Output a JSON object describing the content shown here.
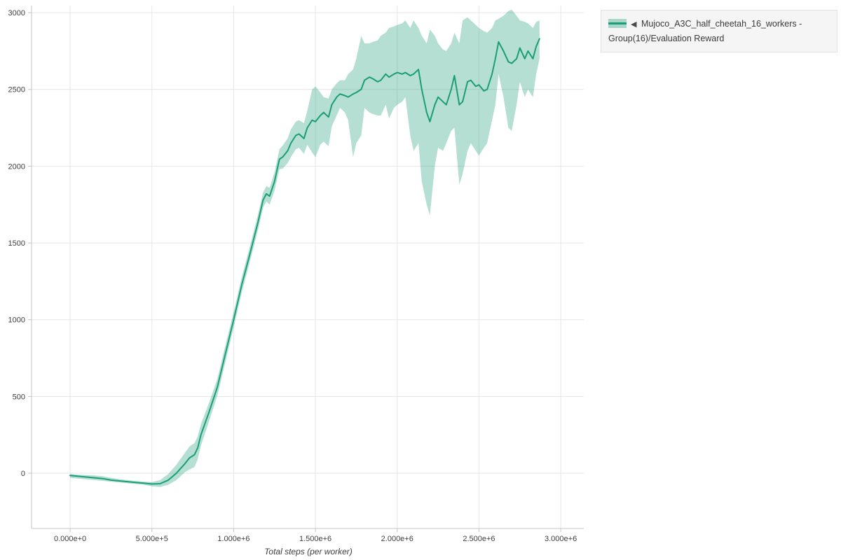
{
  "colors": {
    "line": "#1b9e77",
    "band": "#1b9e77",
    "band_opacity": 0.33,
    "grid": "#e6e6e6",
    "axis": "#c4c4c4",
    "tick_text": "#3d3d3d"
  },
  "legend": {
    "collapse_icon": "◀",
    "label": "Mujoco_A3C_half_cheetah_16_workers - Group(16)/Evaluation Reward"
  },
  "axes": {
    "xlabel": "Total steps (per worker)",
    "x_tick_values": [
      0,
      500000,
      1000000,
      1500000,
      2000000,
      2500000,
      3000000
    ],
    "x_tick_labels": [
      "0.000e+0",
      "5.000e+5",
      "1.000e+6",
      "1.500e+6",
      "2.000e+6",
      "2.500e+6",
      "3.000e+6"
    ],
    "y_tick_values": [
      0,
      500,
      1000,
      1500,
      2000,
      2500,
      3000
    ],
    "y_tick_labels": [
      "0",
      "500",
      "1000",
      "1500",
      "2000",
      "2500",
      "3000"
    ]
  },
  "chart_data": {
    "type": "line",
    "title": "",
    "xlabel": "Total steps (per worker)",
    "ylabel": "",
    "x_range": [
      -236000,
      3141000
    ],
    "y_range": [
      -360,
      3046
    ],
    "grid": true,
    "legend_position": "top-right",
    "series_name": "Mujoco_A3C_half_cheetah_16_workers - Group(16)/Evaluation Reward",
    "x": [
      0,
      50000,
      100000,
      150000,
      200000,
      250000,
      300000,
      350000,
      400000,
      450000,
      500000,
      550000,
      600000,
      650000,
      700000,
      730000,
      760000,
      780000,
      800000,
      850000,
      900000,
      950000,
      1000000,
      1050000,
      1100000,
      1150000,
      1180000,
      1200000,
      1220000,
      1250000,
      1280000,
      1300000,
      1330000,
      1350000,
      1380000,
      1400000,
      1430000,
      1450000,
      1480000,
      1500000,
      1530000,
      1550000,
      1580000,
      1600000,
      1630000,
      1650000,
      1680000,
      1700000,
      1730000,
      1750000,
      1780000,
      1800000,
      1830000,
      1850000,
      1880000,
      1900000,
      1930000,
      1950000,
      1980000,
      2000000,
      2030000,
      2050000,
      2080000,
      2100000,
      2130000,
      2150000,
      2180000,
      2200000,
      2230000,
      2250000,
      2280000,
      2300000,
      2330000,
      2350000,
      2380000,
      2400000,
      2430000,
      2450000,
      2480000,
      2500000,
      2530000,
      2550000,
      2580000,
      2600000,
      2620000,
      2650000,
      2680000,
      2700000,
      2730000,
      2750000,
      2780000,
      2800000,
      2830000,
      2850000,
      2870000
    ],
    "mean": [
      -15,
      -20,
      -25,
      -30,
      -35,
      -45,
      -50,
      -55,
      -60,
      -65,
      -70,
      -68,
      -45,
      0,
      60,
      100,
      120,
      165,
      250,
      400,
      560,
      780,
      1000,
      1230,
      1430,
      1640,
      1780,
      1820,
      1805,
      1900,
      2045,
      2060,
      2100,
      2150,
      2200,
      2210,
      2180,
      2250,
      2300,
      2290,
      2330,
      2350,
      2320,
      2400,
      2450,
      2470,
      2460,
      2450,
      2470,
      2480,
      2500,
      2560,
      2580,
      2570,
      2550,
      2560,
      2600,
      2580,
      2600,
      2610,
      2600,
      2610,
      2590,
      2600,
      2630,
      2500,
      2350,
      2290,
      2400,
      2450,
      2420,
      2400,
      2500,
      2590,
      2400,
      2420,
      2550,
      2560,
      2520,
      2530,
      2490,
      2500,
      2600,
      2700,
      2810,
      2750,
      2680,
      2670,
      2700,
      2770,
      2700,
      2750,
      2700,
      2780,
      2830
    ],
    "lower": [
      -30,
      -35,
      -40,
      -45,
      -50,
      -55,
      -60,
      -65,
      -70,
      -75,
      -85,
      -90,
      -75,
      -45,
      5,
      25,
      40,
      90,
      180,
      340,
      505,
      725,
      950,
      1180,
      1380,
      1590,
      1730,
      1770,
      1750,
      1840,
      1980,
      1985,
      2020,
      2060,
      2110,
      2120,
      2080,
      2140,
      2090,
      2060,
      2140,
      2160,
      2130,
      2260,
      2330,
      2380,
      2350,
      2300,
      2060,
      2150,
      2200,
      2380,
      2350,
      2340,
      2330,
      2330,
      2400,
      2310,
      2380,
      2400,
      2420,
      2450,
      2200,
      2100,
      2150,
      1900,
      1750,
      1680,
      2000,
      2120,
      2100,
      2150,
      2230,
      2250,
      1880,
      1950,
      2100,
      2150,
      2100,
      2070,
      2120,
      2150,
      2300,
      2400,
      2600,
      2450,
      2250,
      2230,
      2400,
      2550,
      2450,
      2500,
      2450,
      2600,
      2700
    ],
    "upper": [
      -5,
      -10,
      -12,
      -15,
      -20,
      -30,
      -38,
      -45,
      -50,
      -55,
      -58,
      -45,
      -5,
      55,
      130,
      175,
      195,
      240,
      320,
      460,
      615,
      835,
      1050,
      1280,
      1480,
      1690,
      1830,
      1870,
      1860,
      1960,
      2110,
      2135,
      2180,
      2240,
      2290,
      2300,
      2280,
      2360,
      2500,
      2520,
      2480,
      2450,
      2440,
      2500,
      2540,
      2560,
      2560,
      2600,
      2630,
      2700,
      2850,
      2800,
      2800,
      2810,
      2820,
      2850,
      2870,
      2900,
      2910,
      2920,
      2930,
      2950,
      2900,
      2950,
      2900,
      2850,
      2800,
      2890,
      2850,
      2800,
      2760,
      2750,
      2800,
      2870,
      2800,
      2950,
      2970,
      2950,
      2920,
      2900,
      2880,
      2870,
      2900,
      2950,
      2960,
      2980,
      3010,
      3020,
      2980,
      2950,
      2940,
      2930,
      2900,
      2940,
      2950
    ]
  }
}
